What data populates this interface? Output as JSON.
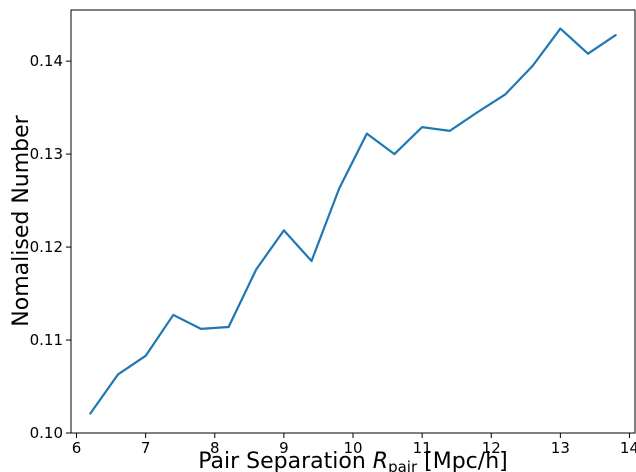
{
  "chart_data": {
    "type": "line",
    "title": "",
    "xlabel": "Pair Separation",
    "xlabel_symbol": "R",
    "xlabel_subscript": "pair",
    "xlabel_unit": "[Mpc/h]",
    "ylabel": "Nomalised Number",
    "xlim": [
      5.92,
      14.08
    ],
    "ylim": [
      0.1,
      0.1455
    ],
    "xticks": [
      6,
      7,
      8,
      9,
      10,
      11,
      12,
      13,
      14
    ],
    "xtick_labels": [
      "6",
      "7",
      "8",
      "9",
      "10",
      "11",
      "12",
      "13",
      "14"
    ],
    "yticks": [
      0.1,
      0.11,
      0.12,
      0.13,
      0.14
    ],
    "ytick_labels": [
      "0.10",
      "0.11",
      "0.12",
      "0.13",
      "0.14"
    ],
    "grid": false,
    "series": [
      {
        "color": "#1f77b4",
        "x": [
          6.2,
          6.6,
          7.0,
          7.4,
          7.8,
          8.2,
          8.6,
          9.0,
          9.4,
          9.8,
          10.2,
          10.6,
          11.0,
          11.4,
          11.8,
          12.2,
          12.6,
          13.0,
          13.4,
          13.8
        ],
        "y": [
          0.1021,
          0.1063,
          0.1083,
          0.1127,
          0.1112,
          0.1114,
          0.1176,
          0.1218,
          0.1185,
          0.1263,
          0.1322,
          0.13,
          0.1329,
          0.1325,
          0.1345,
          0.1364,
          0.1395,
          0.1435,
          0.1408,
          0.1428
        ]
      }
    ]
  }
}
